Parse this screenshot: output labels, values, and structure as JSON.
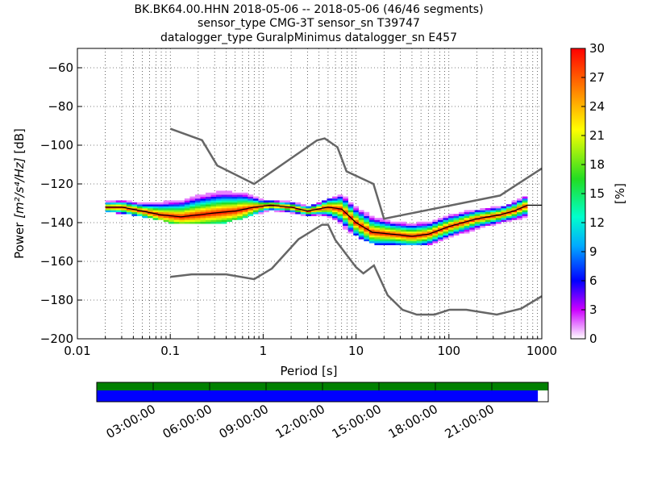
{
  "title_lines": [
    "BK.BK64.00.HHN   2018-05-06 -- 2018-05-06  (46/46 segments)",
    "sensor_type CMG-3T sensor_sn T39747",
    "datalogger_type GuralpMinimus datalogger_sn E457"
  ],
  "chart_data": {
    "type": "heatmap",
    "title": "BK.BK64.00.HHN   2018-05-06 -- 2018-05-06  (46/46 segments)",
    "xlabel": "Period [s]",
    "ylabel": "Power [m²/s⁴/Hz] [dB]",
    "x_scale": "log",
    "xlim": [
      0.01,
      1000
    ],
    "ylim": [
      -200,
      -50
    ],
    "x_ticks": [
      0.01,
      0.1,
      1,
      10,
      100,
      1000
    ],
    "x_tick_labels": [
      "0.01",
      "0.1",
      "1",
      "10",
      "100",
      "1000"
    ],
    "y_ticks": [
      -200,
      -180,
      -160,
      -140,
      -120,
      -100,
      -80,
      -60
    ],
    "y_tick_labels": [
      "−200",
      "−180",
      "−160",
      "−140",
      "−120",
      "−100",
      "−80",
      "−60"
    ],
    "grid": true,
    "colorbar": {
      "label": "[%]",
      "range": [
        0,
        30
      ],
      "ticks": [
        0,
        3,
        6,
        9,
        12,
        15,
        18,
        21,
        24,
        27,
        30
      ]
    },
    "high_noise_model": [
      [
        0.1,
        -91.5
      ],
      [
        0.22,
        -97.4
      ],
      [
        0.32,
        -110.5
      ],
      [
        0.8,
        -120
      ],
      [
        3.8,
        -97.5
      ],
      [
        4.6,
        -96.5
      ],
      [
        6.3,
        -101
      ],
      [
        7.9,
        -113.5
      ],
      [
        15.4,
        -120
      ],
      [
        20,
        -138
      ],
      [
        354.8,
        -126
      ],
      [
        1000,
        -112
      ]
    ],
    "low_noise_model": [
      [
        0.1,
        -168
      ],
      [
        0.17,
        -166.7
      ],
      [
        0.4,
        -166.7
      ],
      [
        0.8,
        -169.2
      ],
      [
        1.24,
        -163.7
      ],
      [
        2.4,
        -148.6
      ],
      [
        4.3,
        -141.1
      ],
      [
        5.0,
        -141.1
      ],
      [
        6.0,
        -149
      ],
      [
        10,
        -163
      ],
      [
        12,
        -166.2
      ],
      [
        15.6,
        -162.1
      ],
      [
        21.9,
        -177.5
      ],
      [
        31.6,
        -185
      ],
      [
        45,
        -187.5
      ],
      [
        70,
        -187.5
      ],
      [
        101,
        -185
      ],
      [
        154,
        -185
      ],
      [
        328,
        -187.5
      ],
      [
        600,
        -184.4
      ],
      [
        1000,
        -178
      ]
    ],
    "mode_curve": [
      [
        0.02,
        -132
      ],
      [
        0.03,
        -132
      ],
      [
        0.05,
        -134
      ],
      [
        0.08,
        -136
      ],
      [
        0.13,
        -137
      ],
      [
        0.2,
        -136
      ],
      [
        0.3,
        -135
      ],
      [
        0.5,
        -134
      ],
      [
        0.8,
        -132
      ],
      [
        1.2,
        -131
      ],
      [
        2,
        -132
      ],
      [
        3,
        -134
      ],
      [
        5,
        -132
      ],
      [
        7,
        -133
      ],
      [
        10,
        -140
      ],
      [
        15,
        -145
      ],
      [
        25,
        -146
      ],
      [
        40,
        -147
      ],
      [
        60,
        -146
      ],
      [
        100,
        -142
      ],
      [
        200,
        -138
      ],
      [
        350,
        -136
      ],
      [
        500,
        -134
      ],
      [
        700,
        -131
      ],
      [
        1000,
        -131
      ]
    ],
    "upper_envelope": [
      [
        0.03,
        -127
      ],
      [
        0.05,
        -128
      ],
      [
        0.1,
        -124
      ],
      [
        0.2,
        -120
      ],
      [
        0.35,
        -118
      ],
      [
        0.6,
        -119
      ],
      [
        1,
        -128
      ],
      [
        2,
        -130
      ],
      [
        4,
        -131
      ],
      [
        7,
        -126
      ],
      [
        10,
        -130
      ],
      [
        15,
        -134
      ],
      [
        25,
        -138
      ],
      [
        60,
        -138
      ],
      [
        150,
        -135
      ],
      [
        400,
        -132
      ],
      [
        700,
        -127
      ]
    ],
    "lower_envelope": [
      [
        0.02,
        -133
      ],
      [
        0.05,
        -136
      ],
      [
        0.1,
        -139
      ],
      [
        0.2,
        -140
      ],
      [
        0.4,
        -139
      ],
      [
        0.8,
        -135
      ],
      [
        1.5,
        -133
      ],
      [
        3,
        -136
      ],
      [
        6,
        -140
      ],
      [
        10,
        -146
      ],
      [
        15,
        -150
      ],
      [
        25,
        -151
      ],
      [
        50,
        -151
      ],
      [
        100,
        -148
      ],
      [
        300,
        -142
      ],
      [
        700,
        -138
      ]
    ]
  },
  "timeline": {
    "tick_labels": [
      "03:00:00",
      "06:00:00",
      "09:00:00",
      "12:00:00",
      "15:00:00",
      "18:00:00",
      "21:00:00"
    ],
    "coverage_fraction": 0.977,
    "colors": {
      "data_bar": "#008000",
      "coverage_bar": "#0000ff"
    }
  }
}
